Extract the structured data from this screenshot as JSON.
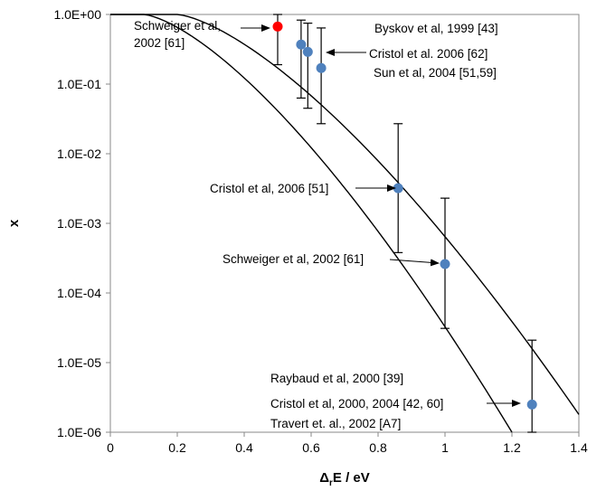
{
  "chart_data": {
    "type": "scatter",
    "title": "",
    "xlabel": {
      "main": "Δ",
      "sub": "r",
      "rest": "E / eV"
    },
    "ylabel": "x",
    "xlim": [
      0,
      1.4
    ],
    "ylim": [
      1e-06,
      1
    ],
    "y_scale": "log",
    "grid": false,
    "x_ticks": [
      "0",
      "0.2",
      "0.4",
      "0.6",
      "0.8",
      "1",
      "1.2",
      "1.4"
    ],
    "y_ticks": [
      "1.0E+00",
      "1.0E-01",
      "1.0E-02",
      "1.0E-03",
      "1.0E-04",
      "1.0E-05",
      "1.0E-06"
    ],
    "colors": {
      "points": "#4f81bd",
      "highlight": "#ff0000",
      "lines": "#000000"
    },
    "points": [
      {
        "x": 0.5,
        "y": 0.67,
        "y_low": 0.19,
        "y_high": 1.0,
        "color": "#ff0000"
      },
      {
        "x": 0.57,
        "y": 0.37,
        "y_low": 0.063,
        "y_high": 0.83
      },
      {
        "x": 0.59,
        "y": 0.29,
        "y_low": 0.045,
        "y_high": 0.75
      },
      {
        "x": 0.63,
        "y": 0.17,
        "y_low": 0.027,
        "y_high": 0.64
      },
      {
        "x": 0.86,
        "y": 0.0032,
        "y_low": 0.00038,
        "y_high": 0.027
      },
      {
        "x": 1.0,
        "y": 0.00026,
        "y_low": 3.1e-05,
        "y_high": 0.0023
      },
      {
        "x": 1.26,
        "y": 2.5e-06,
        "y_low": 1e-06,
        "y_high": 2.1e-05
      }
    ],
    "curves": [
      {
        "y_max": 1.0,
        "y_min": 1e-06,
        "x_start": 0.1,
        "x_end": 1.2
      },
      {
        "y_max": 1.0,
        "y_min": 1.8e-06,
        "x_start": 0.2,
        "x_end": 1.4
      }
    ],
    "annotations": [
      {
        "lines": [
          "Schweiger et al,",
          "2002 [61]"
        ],
        "arrow": true
      },
      {
        "lines": [
          "Byskov et al, 1999 [43]"
        ],
        "arrow": false
      },
      {
        "lines": [
          "Cristol et al. 2006 [62]"
        ],
        "arrow": true
      },
      {
        "lines": [
          "Sun et al, 2004 [51,59]"
        ],
        "arrow": false
      },
      {
        "lines": [
          "Cristol et al, 2006 [51]"
        ],
        "arrow": true
      },
      {
        "lines": [
          "Schweiger et al, 2002 [61]"
        ],
        "arrow": true
      },
      {
        "lines": [
          "Raybaud et al, 2000  [39]"
        ],
        "arrow": false
      },
      {
        "lines": [
          "Cristol et al, 2000, 2004 [42, 60]"
        ],
        "arrow": true
      },
      {
        "lines": [
          "Travert et. al., 2002 [A7]"
        ],
        "arrow": false
      }
    ]
  }
}
